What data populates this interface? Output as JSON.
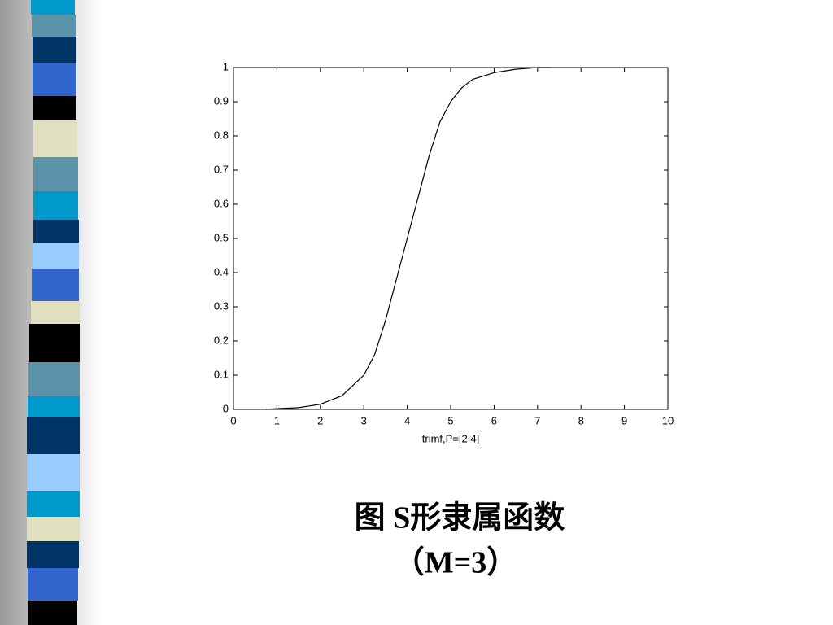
{
  "chart_data": {
    "type": "line",
    "xlabel": "trimf,P=[2 4]",
    "caption": [
      "图  S形隶属函数",
      "（M=3）"
    ],
    "x": [
      0.75,
      1,
      1.5,
      2,
      2.5,
      3,
      3.25,
      3.5,
      3.75,
      4,
      4.25,
      4.5,
      4.75,
      5,
      5.25,
      5.5,
      6,
      6.5,
      7,
      7.3
    ],
    "values": [
      0,
      0.002,
      0.005,
      0.015,
      0.04,
      0.1,
      0.16,
      0.26,
      0.38,
      0.5,
      0.62,
      0.74,
      0.84,
      0.9,
      0.94,
      0.965,
      0.985,
      0.995,
      1,
      1
    ],
    "color": "#000000",
    "xlim": [
      0,
      10
    ],
    "xticks": [
      0,
      1,
      2,
      3,
      4,
      5,
      6,
      7,
      8,
      9,
      10
    ],
    "ylim": [
      0,
      1
    ],
    "yticks": [
      0,
      0.1,
      0.2,
      0.3,
      0.4,
      0.5,
      0.6,
      0.7,
      0.8,
      0.9,
      1
    ]
  }
}
